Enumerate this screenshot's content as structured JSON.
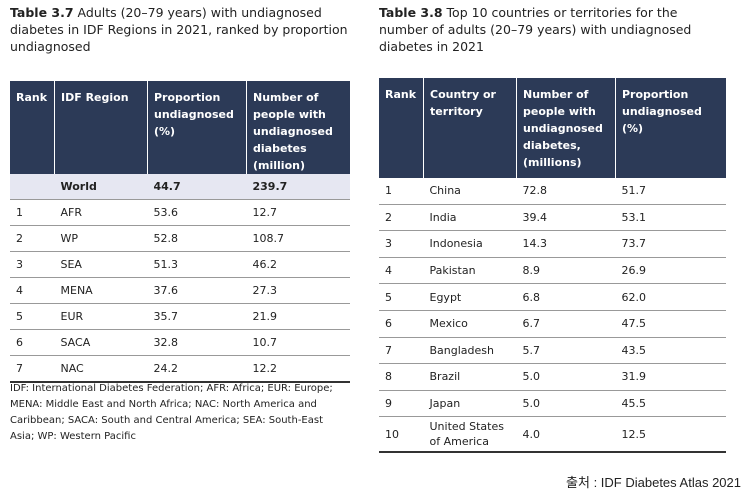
{
  "left_table": {
    "title_prefix": "Table 3.7",
    "title_text": "Adults (20–79 years) with undiagnosed diabetes in IDF Regions in 2021, ranked by proportion undiagnosed",
    "headers": [
      "Rank",
      "IDF Region",
      "Proportion undiagnosed (%)",
      "Number of people with undiagnosed diabetes (million)"
    ],
    "world": {
      "rank": "",
      "region": "World",
      "proportion": "44.7",
      "number": "239.7"
    },
    "rows": [
      {
        "rank": "1",
        "region": "AFR",
        "proportion": "53.6",
        "number": "12.7"
      },
      {
        "rank": "2",
        "region": "WP",
        "proportion": "52.8",
        "number": "108.7"
      },
      {
        "rank": "3",
        "region": "SEA",
        "proportion": "51.3",
        "number": "46.2"
      },
      {
        "rank": "4",
        "region": "MENA",
        "proportion": "37.6",
        "number": "27.3"
      },
      {
        "rank": "5",
        "region": "EUR",
        "proportion": "35.7",
        "number": "21.9"
      },
      {
        "rank": "6",
        "region": "SACA",
        "proportion": "32.8",
        "number": "10.7"
      },
      {
        "rank": "7",
        "region": "NAC",
        "proportion": "24.2",
        "number": "12.2"
      }
    ],
    "footnote": "IDF: International Diabetes Federation; AFR: Africa; EUR: Europe; MENA: Middle East and North Africa; NAC: North America and Caribbean; SACA: South and Central America; SEA: South-East Asia; WP: Western Pacific"
  },
  "right_table": {
    "title_prefix": "Table 3.8",
    "title_text": "Top 10 countries or territories for the number of adults (20–79 years) with undiagnosed diabetes in 2021",
    "headers": [
      "Rank",
      "Country or territory",
      "Number of people with undiagnosed diabetes, (millions)",
      "Proportion undiagnosed (%)"
    ],
    "rows": [
      {
        "rank": "1",
        "country": "China",
        "number": "72.8",
        "proportion": "51.7"
      },
      {
        "rank": "2",
        "country": "India",
        "number": "39.4",
        "proportion": "53.1"
      },
      {
        "rank": "3",
        "country": "Indonesia",
        "number": "14.3",
        "proportion": "73.7"
      },
      {
        "rank": "4",
        "country": "Pakistan",
        "number": "8.9",
        "proportion": "26.9"
      },
      {
        "rank": "5",
        "country": "Egypt",
        "number": "6.8",
        "proportion": "62.0"
      },
      {
        "rank": "6",
        "country": "Mexico",
        "number": "6.7",
        "proportion": "47.5"
      },
      {
        "rank": "7",
        "country": "Bangladesh",
        "number": "5.7",
        "proportion": "43.5"
      },
      {
        "rank": "8",
        "country": "Brazil",
        "number": "5.0",
        "proportion": "31.9"
      },
      {
        "rank": "9",
        "country": "Japan",
        "number": "5.0",
        "proportion": "45.5"
      },
      {
        "rank": "10",
        "country": "United States of America",
        "number": "4.0",
        "proportion": "12.5"
      }
    ]
  },
  "source": "출처 : IDF Diabetes Atlas 2021"
}
